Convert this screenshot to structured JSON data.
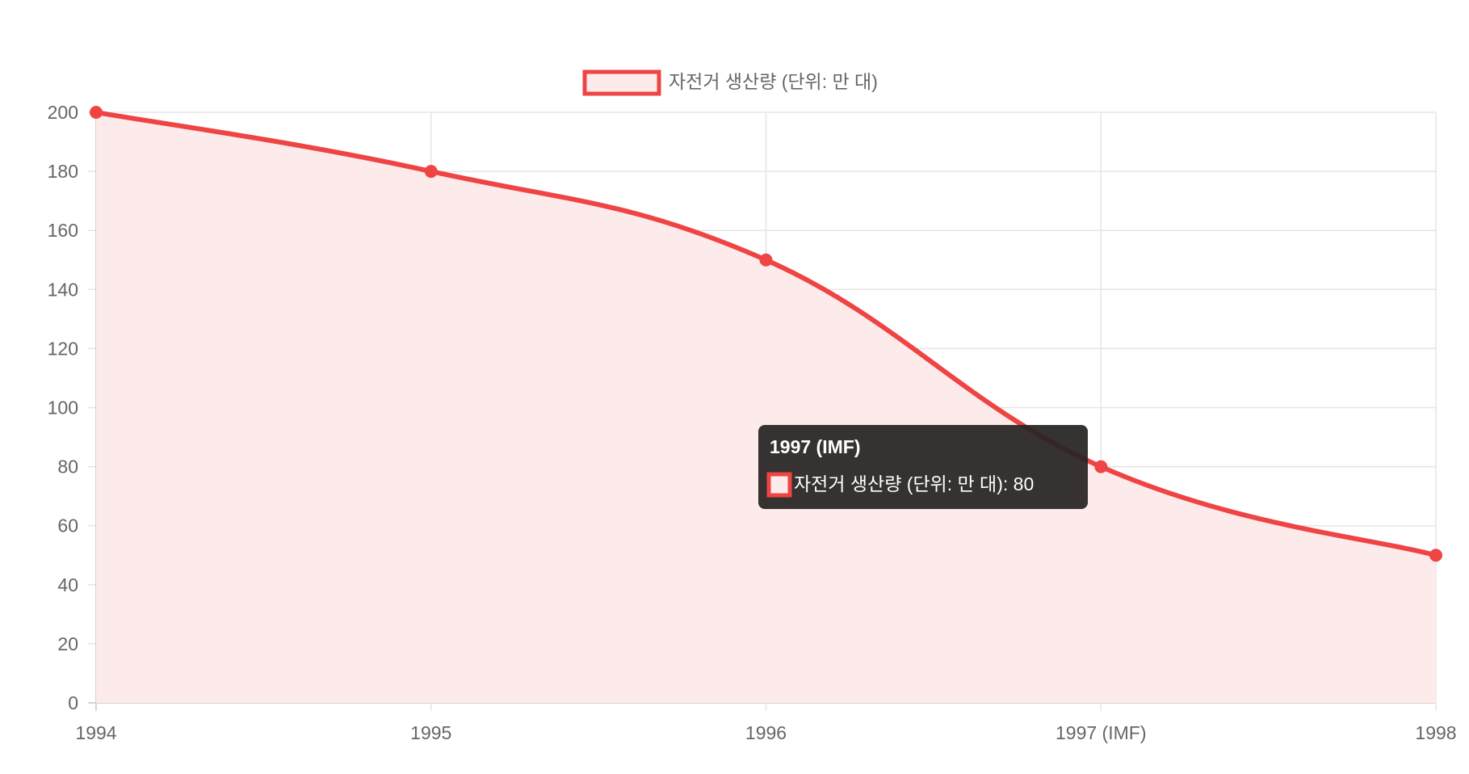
{
  "chart_data": {
    "type": "line",
    "categories": [
      "1994",
      "1995",
      "1996",
      "1997 (IMF)",
      "1998"
    ],
    "series": [
      {
        "name": "자전거 생산량 (단위: 만 대)",
        "values": [
          200,
          180,
          150,
          80,
          50
        ]
      }
    ],
    "ylim": [
      0,
      200
    ],
    "yticks": [
      "0",
      "20",
      "40",
      "60",
      "80",
      "100",
      "120",
      "140",
      "160",
      "180",
      "200"
    ],
    "grid": true,
    "legend": "top-center",
    "fill": true,
    "colors": {
      "line": "#ef4444",
      "fill": "#fdeaea",
      "grid": "#e5e5e5",
      "tooltip_bg": "#262322"
    },
    "tooltip": {
      "title": "1997 (IMF)",
      "label": "자전거 생산량 (단위: 만 대): 80"
    }
  }
}
